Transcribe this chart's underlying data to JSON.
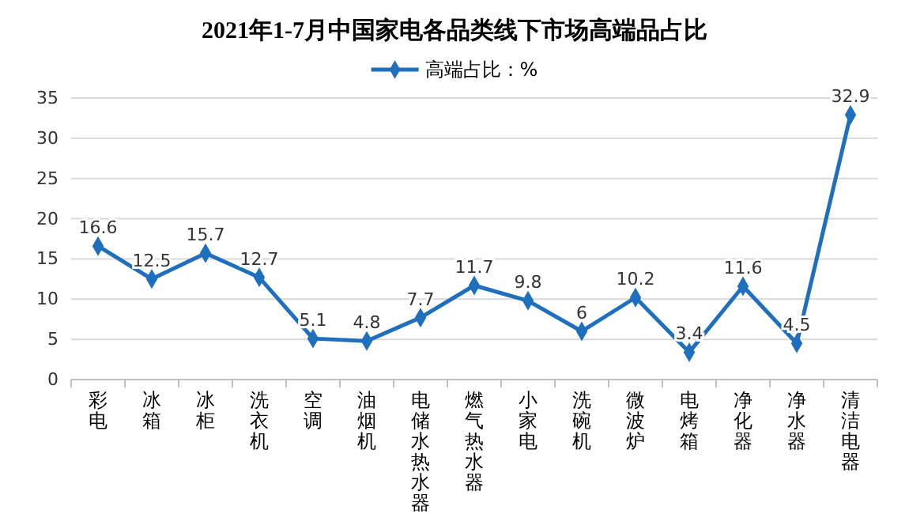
{
  "chart_data": {
    "type": "line",
    "title": "2021年1-7月中国家电各品类线下市场高端品占比",
    "categories": [
      "彩电",
      "冰箱",
      "冰柜",
      "洗衣机",
      "空调",
      "油烟机",
      "电储水热水器",
      "燃气热水器",
      "小家电",
      "洗碗机",
      "微波炉",
      "电烤箱",
      "净化器",
      "净水器",
      "清洁电器"
    ],
    "series": [
      {
        "name": "高端占比：%",
        "color": "#1f6fbf",
        "values": [
          16.6,
          12.5,
          15.7,
          12.7,
          5.1,
          4.8,
          7.7,
          11.7,
          9.8,
          6,
          10.2,
          3.4,
          11.6,
          4.5,
          32.9
        ]
      }
    ],
    "ylim": [
      0,
      35
    ],
    "yticks": [
      0,
      5,
      10,
      15,
      20,
      25,
      30,
      35
    ],
    "grid": "y",
    "legend": "top",
    "marker": "diamond",
    "line_style": "solid",
    "data_labels": true
  }
}
